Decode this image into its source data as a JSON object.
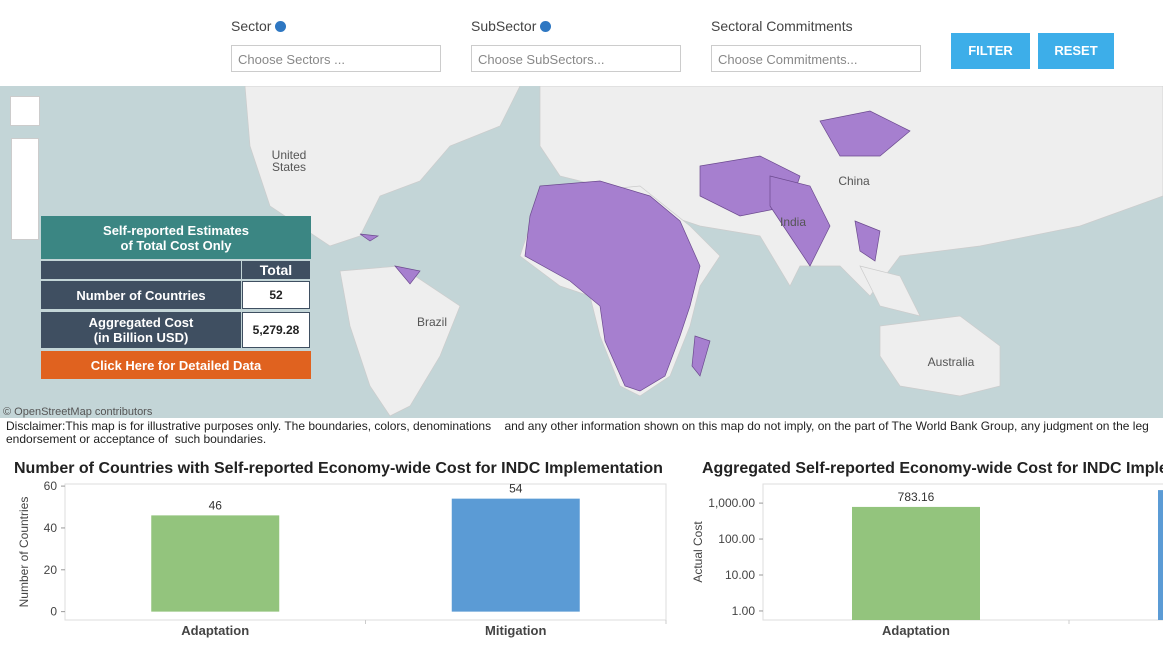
{
  "filters": [
    {
      "label": "Sector",
      "placeholder": "Choose Sectors ..."
    },
    {
      "label": "SubSector",
      "placeholder": "Choose SubSectors..."
    },
    {
      "label": "Sectoral Commitments",
      "placeholder": "Choose Commitments..."
    }
  ],
  "buttons": {
    "filter": "FILTER",
    "reset": "RESET"
  },
  "map": {
    "labels": {
      "us": "United\nStates",
      "brazil": "Brazil",
      "china": "China",
      "india": "India",
      "australia": "Australia"
    },
    "attribution": "© OpenStreetMap contributors"
  },
  "summary": {
    "title": "Self-reported Estimates\nof Total Cost Only",
    "column": "Total",
    "rows": [
      [
        "Number of Countries",
        "52"
      ],
      [
        "Aggregated Cost\n(in Billion USD)",
        "5,279.28"
      ]
    ],
    "button": "Click Here for Detailed Data"
  },
  "disclaimer": "Disclaimer:This map is for illustrative purposes only. The boundaries, colors, denominations    and any other information shown on this map do not imply, on the part of The World Bank Group, any judgment on the leg\nendorsement or acceptance of  such boundaries.",
  "chart_data": [
    {
      "type": "bar",
      "title": "Number of Countries with Self-reported Economy-wide Cost for INDC Implementation",
      "y_label": "Number of Countries",
      "categories": [
        "Adaptation",
        "Mitigation"
      ],
      "values": [
        46,
        54
      ],
      "colors": [
        "#93c47d",
        "#5b9bd5"
      ],
      "ylim": [
        -4,
        61
      ],
      "yticks": [
        0,
        20,
        40,
        60
      ],
      "log": false
    },
    {
      "type": "bar",
      "title": "Aggregated Self-reported Economy-wide Cost for INDC Imple",
      "y_label": "Actual Cost",
      "categories": [
        "Adaptation",
        null
      ],
      "values": [
        783.16,
        2300
      ],
      "value_labels": [
        "783.16",
        null
      ],
      "colors": [
        "#93c47d",
        "#5b9bd5"
      ],
      "ylim": [
        0.56,
        3400
      ],
      "log": true,
      "yticks": [
        {
          "value": 1,
          "label": "1.00"
        },
        {
          "value": 10,
          "label": "10.00"
        },
        {
          "value": 100,
          "label": "100.00"
        },
        {
          "value": 1000,
          "label": "1,000.00"
        }
      ]
    }
  ]
}
